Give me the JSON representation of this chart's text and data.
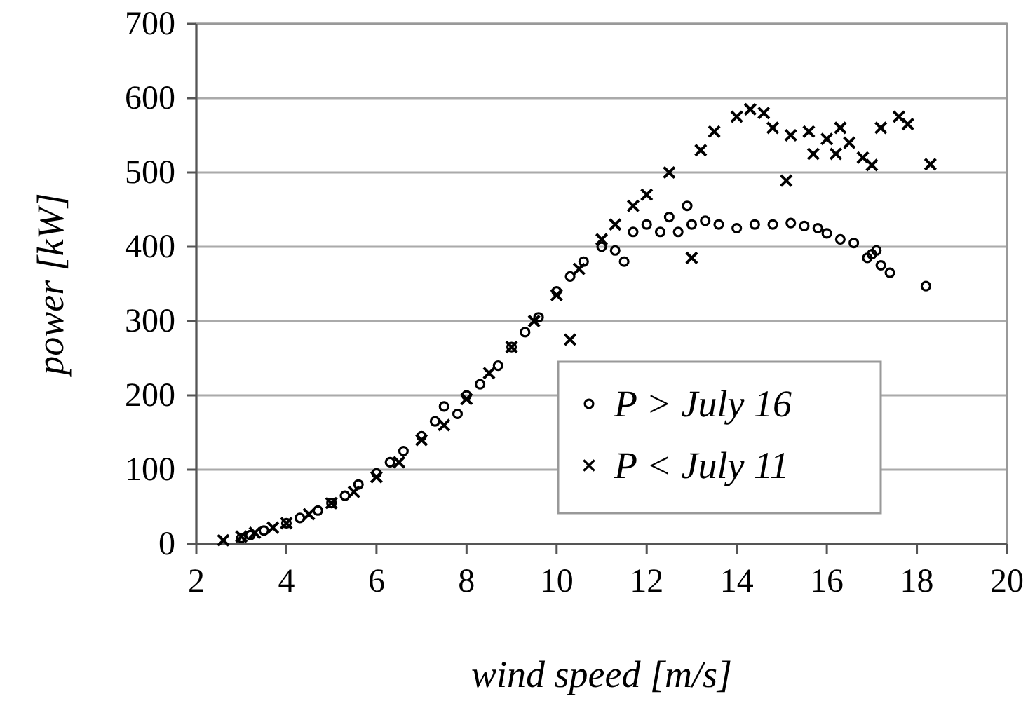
{
  "chart_data": {
    "type": "scatter",
    "xlabel": "wind speed [m/s]",
    "ylabel": "power [kW]",
    "xlim": [
      2,
      20
    ],
    "xticks": [
      2,
      4,
      6,
      8,
      10,
      12,
      14,
      16,
      18,
      20
    ],
    "ylim": [
      0,
      700
    ],
    "yticks": [
      0,
      100,
      200,
      300,
      400,
      500,
      600,
      700
    ],
    "grid": "y",
    "legend": "right",
    "series": [
      {
        "name": "P > July 16",
        "color": "#000000",
        "marker": "circle",
        "x": [
          3.0,
          3.2,
          3.5,
          4,
          4.3,
          4.7,
          5,
          5.3,
          5.6,
          6,
          6.3,
          6.6,
          7,
          7.3,
          7.5,
          7.8,
          8,
          8.3,
          8.7,
          9,
          9.3,
          9.6,
          10,
          10.3,
          10.6,
          11,
          11.3,
          11.5,
          11.7,
          12,
          12.3,
          12.5,
          12.7,
          12.9,
          13,
          13.3,
          13.6,
          14,
          14.4,
          14.8,
          15.2,
          15.5,
          15.8,
          16,
          16.3,
          16.6,
          16.9,
          17,
          17.1,
          17.2,
          17.4,
          18.2
        ],
        "values": [
          8,
          12,
          18,
          28,
          35,
          45,
          55,
          65,
          80,
          95,
          110,
          125,
          145,
          165,
          185,
          175,
          200,
          215,
          240,
          265,
          285,
          305,
          340,
          360,
          380,
          400,
          395,
          380,
          420,
          430,
          420,
          440,
          420,
          455,
          430,
          435,
          430,
          425,
          430,
          430,
          432,
          428,
          425,
          418,
          410,
          405,
          385,
          390,
          395,
          375,
          365,
          347
        ]
      },
      {
        "name": "P < July 11",
        "color": "#000000",
        "marker": "cross",
        "x": [
          2.6,
          3,
          3.3,
          3.7,
          4,
          4.5,
          5,
          5.5,
          6,
          6.5,
          7,
          7.5,
          8,
          8.5,
          9,
          9.5,
          10,
          10.3,
          10.5,
          11,
          11.3,
          11.7,
          12,
          12.5,
          13.0,
          13.2,
          13.5,
          14,
          14.3,
          14.6,
          14.8,
          15.1,
          15.2,
          15.6,
          15.7,
          16,
          16.2,
          16.3,
          16.5,
          16.8,
          17,
          17.2,
          17.6,
          17.8,
          18.3
        ],
        "values": [
          5,
          10,
          15,
          22,
          28,
          40,
          55,
          70,
          90,
          110,
          140,
          160,
          195,
          230,
          265,
          300,
          335,
          275,
          370,
          410,
          430,
          455,
          470,
          500,
          385,
          530,
          555,
          575,
          585,
          580,
          560,
          489,
          550,
          555,
          525,
          545,
          525,
          560,
          540,
          520,
          510,
          560,
          575,
          565,
          511
        ]
      }
    ]
  }
}
